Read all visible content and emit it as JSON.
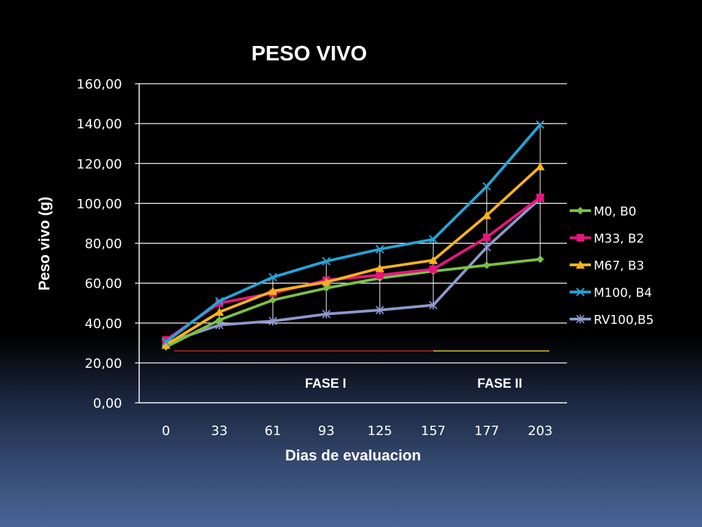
{
  "chart_data": {
    "type": "line",
    "title": "PESO VIVO",
    "xlabel": "Dias de evaluacion",
    "ylabel": "Peso vivo (g)",
    "categories": [
      "0",
      "33",
      "61",
      "93",
      "125",
      "157",
      "177",
      "203"
    ],
    "y_ticks": [
      "0,00",
      "20,00",
      "40,00",
      "60,00",
      "80,00",
      "100,00",
      "120,00",
      "140,00",
      "160,00"
    ],
    "ylim": [
      0,
      160
    ],
    "grid": true,
    "legend_position": "right",
    "series": [
      {
        "name": "M0, B0",
        "color": "#7ac143",
        "marker": "diamond",
        "values": [
          28,
          41.5,
          51.5,
          57.5,
          62.5,
          66,
          69,
          72
        ]
      },
      {
        "name": "M33, B2",
        "color": "#e7157f",
        "marker": "square",
        "values": [
          31.5,
          50,
          55,
          61.5,
          64,
          67,
          83,
          103
        ]
      },
      {
        "name": "M67, B3",
        "color": "#f9b21b",
        "marker": "triangle",
        "values": [
          29,
          45.5,
          56,
          60.5,
          67.5,
          71.5,
          94,
          118.5
        ]
      },
      {
        "name": "M100, B4",
        "color": "#23a5d8",
        "marker": "x",
        "values": [
          30.5,
          51,
          63,
          71,
          77,
          82,
          108.5,
          139.5
        ]
      },
      {
        "name": "RV100,B5",
        "color": "#8d98cc",
        "marker": "star",
        "values": [
          30,
          39,
          41,
          44.5,
          46.5,
          49,
          78,
          102.5
        ]
      }
    ],
    "annotations": {
      "phases": [
        {
          "label": "FASE I",
          "color": "#b22a1a",
          "from": "0",
          "to": "157"
        },
        {
          "label": "FASE II",
          "color": "#d7c42b",
          "from": "157",
          "to": "203"
        }
      ],
      "phase_line_value": 26,
      "drop_lines": true
    }
  }
}
